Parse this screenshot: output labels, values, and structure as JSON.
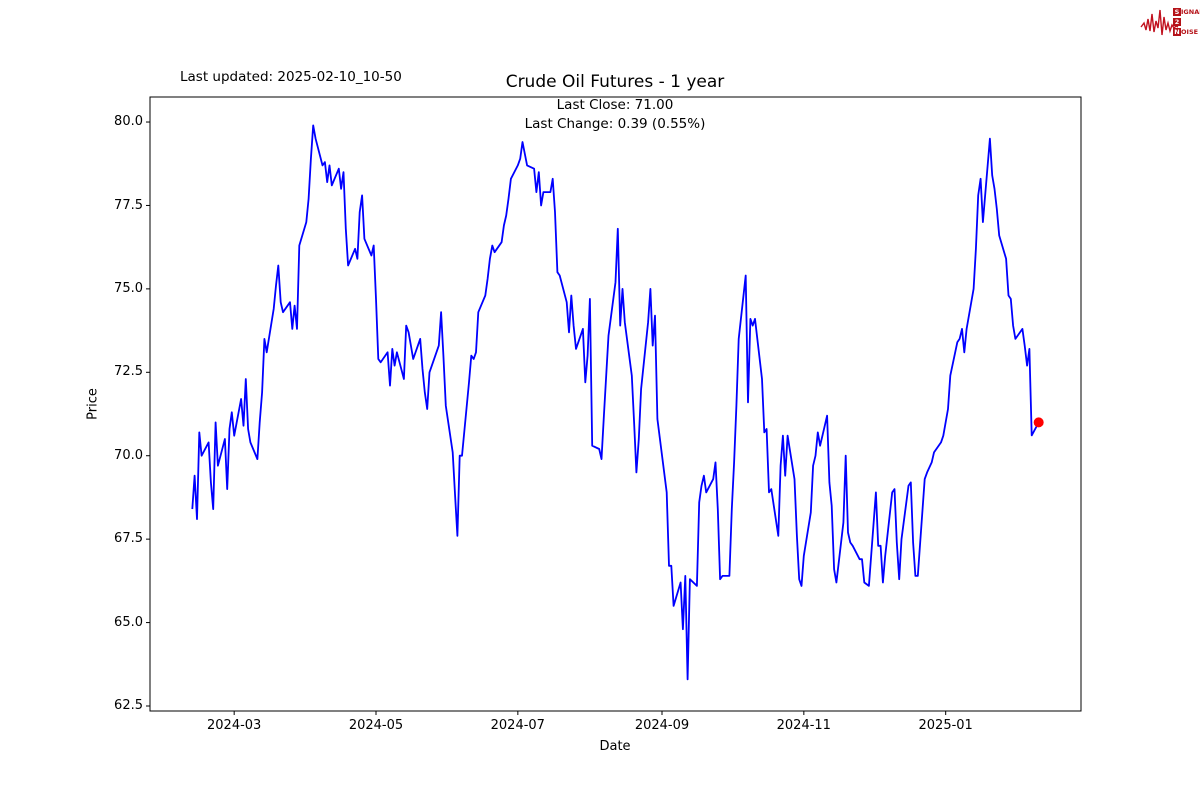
{
  "header": {
    "last_updated": "Last updated: 2025-02-10_10-50",
    "title": "Crude Oil Futures - 1 year"
  },
  "annotation": {
    "line1": "Last Close: 71.00",
    "line2": "Last Change: 0.39 (0.55%)"
  },
  "logo": {
    "color": "#b51218",
    "wave_color": "#c1121f",
    "row1_initial": "S",
    "row1_rest": "IGNAL",
    "row2_initial": "2",
    "row2_rest": "",
    "row3_initial": "N",
    "row3_rest": "OISE"
  },
  "chart_data": {
    "type": "line",
    "title": "Crude Oil Futures - 1 year",
    "xlabel": "Date",
    "ylabel": "Price",
    "grid": false,
    "legend": "none",
    "line_color": "#0000ff",
    "marker_color": "#ff0000",
    "start_date": "2024-02-12",
    "xlim_days": [
      -18.2,
      382.2
    ],
    "ylim": [
      62.35,
      80.75
    ],
    "y_ticks": [
      62.5,
      65.0,
      67.5,
      70.0,
      72.5,
      75.0,
      77.5,
      80.0
    ],
    "x_ticks": [
      {
        "label": "2024-03",
        "date": "2024-03-01"
      },
      {
        "label": "2024-05",
        "date": "2024-05-01"
      },
      {
        "label": "2024-07",
        "date": "2024-07-01"
      },
      {
        "label": "2024-09",
        "date": "2024-09-01"
      },
      {
        "label": "2024-11",
        "date": "2024-11-01"
      },
      {
        "label": "2025-01",
        "date": "2025-01-01"
      }
    ],
    "last_point": {
      "date": "2025-02-10",
      "price": 71.0,
      "change": 0.39,
      "change_pct": 0.55
    },
    "series": [
      [
        "2024-02-12",
        68.4
      ],
      [
        "2024-02-13",
        69.4
      ],
      [
        "2024-02-14",
        68.1
      ],
      [
        "2024-02-15",
        70.7
      ],
      [
        "2024-02-16",
        70.0
      ],
      [
        "2024-02-19",
        70.4
      ],
      [
        "2024-02-20",
        69.2
      ],
      [
        "2024-02-21",
        68.4
      ],
      [
        "2024-02-22",
        71.0
      ],
      [
        "2024-02-23",
        69.7
      ],
      [
        "2024-02-26",
        70.5
      ],
      [
        "2024-02-27",
        69.0
      ],
      [
        "2024-02-28",
        70.8
      ],
      [
        "2024-02-29",
        71.3
      ],
      [
        "2024-03-01",
        70.6
      ],
      [
        "2024-03-04",
        71.7
      ],
      [
        "2024-03-05",
        70.9
      ],
      [
        "2024-03-06",
        72.3
      ],
      [
        "2024-03-07",
        70.8
      ],
      [
        "2024-03-08",
        70.4
      ],
      [
        "2024-03-11",
        69.9
      ],
      [
        "2024-03-12",
        71.0
      ],
      [
        "2024-03-13",
        71.9
      ],
      [
        "2024-03-14",
        73.5
      ],
      [
        "2024-03-15",
        73.1
      ],
      [
        "2024-03-18",
        74.4
      ],
      [
        "2024-03-19",
        75.1
      ],
      [
        "2024-03-20",
        75.7
      ],
      [
        "2024-03-21",
        74.6
      ],
      [
        "2024-03-22",
        74.3
      ],
      [
        "2024-03-25",
        74.6
      ],
      [
        "2024-03-26",
        73.8
      ],
      [
        "2024-03-27",
        74.5
      ],
      [
        "2024-03-28",
        73.8
      ],
      [
        "2024-03-29",
        76.3
      ],
      [
        "2024-04-01",
        77.0
      ],
      [
        "2024-04-02",
        77.7
      ],
      [
        "2024-04-03",
        78.9
      ],
      [
        "2024-04-04",
        79.9
      ],
      [
        "2024-04-05",
        79.5
      ],
      [
        "2024-04-08",
        78.7
      ],
      [
        "2024-04-09",
        78.8
      ],
      [
        "2024-04-10",
        78.2
      ],
      [
        "2024-04-11",
        78.7
      ],
      [
        "2024-04-12",
        78.1
      ],
      [
        "2024-04-15",
        78.6
      ],
      [
        "2024-04-16",
        78.0
      ],
      [
        "2024-04-17",
        78.5
      ],
      [
        "2024-04-18",
        76.8
      ],
      [
        "2024-04-19",
        75.7
      ],
      [
        "2024-04-22",
        76.2
      ],
      [
        "2024-04-23",
        75.9
      ],
      [
        "2024-04-24",
        77.3
      ],
      [
        "2024-04-25",
        77.8
      ],
      [
        "2024-04-26",
        76.5
      ],
      [
        "2024-04-29",
        76.0
      ],
      [
        "2024-04-30",
        76.3
      ],
      [
        "2024-05-01",
        74.7
      ],
      [
        "2024-05-02",
        72.9
      ],
      [
        "2024-05-03",
        72.8
      ],
      [
        "2024-05-06",
        73.1
      ],
      [
        "2024-05-07",
        72.1
      ],
      [
        "2024-05-08",
        73.2
      ],
      [
        "2024-05-09",
        72.7
      ],
      [
        "2024-05-10",
        73.1
      ],
      [
        "2024-05-13",
        72.3
      ],
      [
        "2024-05-14",
        73.9
      ],
      [
        "2024-05-15",
        73.7
      ],
      [
        "2024-05-16",
        73.3
      ],
      [
        "2024-05-17",
        72.9
      ],
      [
        "2024-05-20",
        73.5
      ],
      [
        "2024-05-21",
        72.6
      ],
      [
        "2024-05-22",
        71.9
      ],
      [
        "2024-05-23",
        71.4
      ],
      [
        "2024-05-24",
        72.5
      ],
      [
        "2024-05-28",
        73.3
      ],
      [
        "2024-05-29",
        74.3
      ],
      [
        "2024-05-30",
        73.0
      ],
      [
        "2024-05-31",
        71.5
      ],
      [
        "2024-06-03",
        70.1
      ],
      [
        "2024-06-04",
        68.8
      ],
      [
        "2024-06-05",
        67.6
      ],
      [
        "2024-06-06",
        70.0
      ],
      [
        "2024-06-07",
        70.0
      ],
      [
        "2024-06-10",
        72.2
      ],
      [
        "2024-06-11",
        73.0
      ],
      [
        "2024-06-12",
        72.9
      ],
      [
        "2024-06-13",
        73.1
      ],
      [
        "2024-06-14",
        74.3
      ],
      [
        "2024-06-17",
        74.8
      ],
      [
        "2024-06-18",
        75.3
      ],
      [
        "2024-06-19",
        75.9
      ],
      [
        "2024-06-20",
        76.3
      ],
      [
        "2024-06-21",
        76.1
      ],
      [
        "2024-06-24",
        76.4
      ],
      [
        "2024-06-25",
        76.9
      ],
      [
        "2024-06-26",
        77.2
      ],
      [
        "2024-06-27",
        77.7
      ],
      [
        "2024-06-28",
        78.3
      ],
      [
        "2024-07-01",
        78.7
      ],
      [
        "2024-07-02",
        78.9
      ],
      [
        "2024-07-03",
        79.4
      ],
      [
        "2024-07-05",
        78.7
      ],
      [
        "2024-07-08",
        78.6
      ],
      [
        "2024-07-09",
        77.9
      ],
      [
        "2024-07-10",
        78.5
      ],
      [
        "2024-07-11",
        77.5
      ],
      [
        "2024-07-12",
        77.9
      ],
      [
        "2024-07-15",
        77.9
      ],
      [
        "2024-07-16",
        78.3
      ],
      [
        "2024-07-17",
        77.3
      ],
      [
        "2024-07-18",
        75.5
      ],
      [
        "2024-07-19",
        75.4
      ],
      [
        "2024-07-22",
        74.6
      ],
      [
        "2024-07-23",
        73.7
      ],
      [
        "2024-07-24",
        74.8
      ],
      [
        "2024-07-25",
        73.9
      ],
      [
        "2024-07-26",
        73.2
      ],
      [
        "2024-07-29",
        73.8
      ],
      [
        "2024-07-30",
        72.2
      ],
      [
        "2024-07-31",
        73.0
      ],
      [
        "2024-08-01",
        74.7
      ],
      [
        "2024-08-02",
        70.3
      ],
      [
        "2024-08-05",
        70.2
      ],
      [
        "2024-08-06",
        69.9
      ],
      [
        "2024-08-07",
        71.2
      ],
      [
        "2024-08-08",
        72.4
      ],
      [
        "2024-08-09",
        73.6
      ],
      [
        "2024-08-12",
        75.2
      ],
      [
        "2024-08-13",
        76.8
      ],
      [
        "2024-08-14",
        73.9
      ],
      [
        "2024-08-15",
        75.0
      ],
      [
        "2024-08-16",
        74.0
      ],
      [
        "2024-08-19",
        72.4
      ],
      [
        "2024-08-20",
        71.0
      ],
      [
        "2024-08-21",
        69.5
      ],
      [
        "2024-08-22",
        70.5
      ],
      [
        "2024-08-23",
        72.0
      ],
      [
        "2024-08-26",
        74.0
      ],
      [
        "2024-08-27",
        75.0
      ],
      [
        "2024-08-28",
        73.3
      ],
      [
        "2024-08-29",
        74.2
      ],
      [
        "2024-08-30",
        71.1
      ],
      [
        "2024-09-03",
        68.9
      ],
      [
        "2024-09-04",
        66.7
      ],
      [
        "2024-09-05",
        66.7
      ],
      [
        "2024-09-06",
        65.5
      ],
      [
        "2024-09-09",
        66.2
      ],
      [
        "2024-09-10",
        64.8
      ],
      [
        "2024-09-11",
        66.4
      ],
      [
        "2024-09-12",
        63.3
      ],
      [
        "2024-09-13",
        66.3
      ],
      [
        "2024-09-16",
        66.1
      ],
      [
        "2024-09-17",
        68.6
      ],
      [
        "2024-09-18",
        69.1
      ],
      [
        "2024-09-19",
        69.4
      ],
      [
        "2024-09-20",
        68.9
      ],
      [
        "2024-09-23",
        69.3
      ],
      [
        "2024-09-24",
        69.8
      ],
      [
        "2024-09-25",
        68.4
      ],
      [
        "2024-09-26",
        66.3
      ],
      [
        "2024-09-27",
        66.4
      ],
      [
        "2024-09-30",
        66.4
      ],
      [
        "2024-10-01",
        68.4
      ],
      [
        "2024-10-02",
        69.8
      ],
      [
        "2024-10-03",
        71.5
      ],
      [
        "2024-10-04",
        73.5
      ],
      [
        "2024-10-07",
        75.4
      ],
      [
        "2024-10-08",
        71.6
      ],
      [
        "2024-10-09",
        74.1
      ],
      [
        "2024-10-10",
        73.9
      ],
      [
        "2024-10-11",
        74.1
      ],
      [
        "2024-10-14",
        72.3
      ],
      [
        "2024-10-15",
        70.7
      ],
      [
        "2024-10-16",
        70.8
      ],
      [
        "2024-10-17",
        68.9
      ],
      [
        "2024-10-18",
        69.0
      ],
      [
        "2024-10-21",
        67.6
      ],
      [
        "2024-10-22",
        69.7
      ],
      [
        "2024-10-23",
        70.6
      ],
      [
        "2024-10-24",
        69.4
      ],
      [
        "2024-10-25",
        70.6
      ],
      [
        "2024-10-28",
        69.3
      ],
      [
        "2024-10-29",
        67.6
      ],
      [
        "2024-10-30",
        66.3
      ],
      [
        "2024-10-31",
        66.1
      ],
      [
        "2024-11-01",
        67.0
      ],
      [
        "2024-11-04",
        68.3
      ],
      [
        "2024-11-05",
        69.7
      ],
      [
        "2024-11-06",
        70.0
      ],
      [
        "2024-11-07",
        70.7
      ],
      [
        "2024-11-08",
        70.3
      ],
      [
        "2024-11-11",
        71.2
      ],
      [
        "2024-11-12",
        69.2
      ],
      [
        "2024-11-13",
        68.5
      ],
      [
        "2024-11-14",
        66.6
      ],
      [
        "2024-11-15",
        66.2
      ],
      [
        "2024-11-18",
        68.0
      ],
      [
        "2024-11-19",
        70.0
      ],
      [
        "2024-11-20",
        67.7
      ],
      [
        "2024-11-21",
        67.4
      ],
      [
        "2024-11-22",
        67.3
      ],
      [
        "2024-11-25",
        66.9
      ],
      [
        "2024-11-26",
        66.9
      ],
      [
        "2024-11-27",
        66.2
      ],
      [
        "2024-11-29",
        66.1
      ],
      [
        "2024-12-02",
        68.9
      ],
      [
        "2024-12-03",
        67.3
      ],
      [
        "2024-12-04",
        67.3
      ],
      [
        "2024-12-05",
        66.2
      ],
      [
        "2024-12-06",
        67.0
      ],
      [
        "2024-12-09",
        68.9
      ],
      [
        "2024-12-10",
        69.0
      ],
      [
        "2024-12-11",
        67.4
      ],
      [
        "2024-12-12",
        66.3
      ],
      [
        "2024-12-13",
        67.5
      ],
      [
        "2024-12-16",
        69.1
      ],
      [
        "2024-12-17",
        69.2
      ],
      [
        "2024-12-18",
        67.4
      ],
      [
        "2024-12-19",
        66.4
      ],
      [
        "2024-12-20",
        66.4
      ],
      [
        "2024-12-23",
        69.3
      ],
      [
        "2024-12-24",
        69.5
      ],
      [
        "2024-12-26",
        69.8
      ],
      [
        "2024-12-27",
        70.1
      ],
      [
        "2024-12-30",
        70.4
      ],
      [
        "2024-12-31",
        70.6
      ],
      [
        "2025-01-02",
        71.4
      ],
      [
        "2025-01-03",
        72.4
      ],
      [
        "2025-01-06",
        73.4
      ],
      [
        "2025-01-07",
        73.5
      ],
      [
        "2025-01-08",
        73.8
      ],
      [
        "2025-01-09",
        73.1
      ],
      [
        "2025-01-10",
        73.8
      ],
      [
        "2025-01-13",
        75.0
      ],
      [
        "2025-01-14",
        76.2
      ],
      [
        "2025-01-15",
        77.8
      ],
      [
        "2025-01-16",
        78.3
      ],
      [
        "2025-01-17",
        77.0
      ],
      [
        "2025-01-20",
        79.5
      ],
      [
        "2025-01-21",
        78.4
      ],
      [
        "2025-01-22",
        78.0
      ],
      [
        "2025-01-23",
        77.4
      ],
      [
        "2025-01-24",
        76.6
      ],
      [
        "2025-01-27",
        75.9
      ],
      [
        "2025-01-28",
        74.8
      ],
      [
        "2025-01-29",
        74.7
      ],
      [
        "2025-01-30",
        73.9
      ],
      [
        "2025-01-31",
        73.5
      ],
      [
        "2025-02-03",
        73.8
      ],
      [
        "2025-02-04",
        73.3
      ],
      [
        "2025-02-05",
        72.7
      ],
      [
        "2025-02-06",
        73.2
      ],
      [
        "2025-02-07",
        70.61
      ],
      [
        "2025-02-10",
        71.0
      ]
    ]
  }
}
